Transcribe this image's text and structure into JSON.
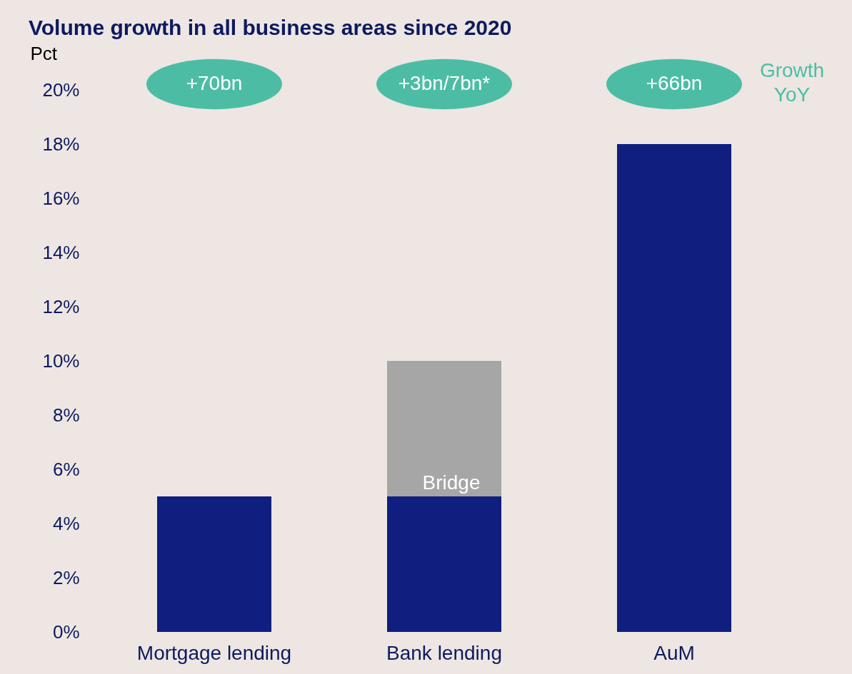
{
  "chart_data": {
    "type": "bar",
    "title": "Volume growth in all business areas since 2020",
    "ylabel": "Pct",
    "categories": [
      "Mortgage lending",
      "Bank lending",
      "AuM"
    ],
    "series": [
      {
        "color": "#101e80",
        "values": [
          5,
          5,
          18
        ]
      },
      {
        "name": "Bridge",
        "color": "#a6a6a6",
        "values": [
          null,
          5,
          null
        ]
      }
    ],
    "stacked": true,
    "ylim": [
      0,
      20
    ],
    "yticks": [
      {
        "value": 0,
        "label": "0%"
      },
      {
        "value": 2,
        "label": "2%"
      },
      {
        "value": 4,
        "label": "4%"
      },
      {
        "value": 6,
        "label": "6%"
      },
      {
        "value": 8,
        "label": "8%"
      },
      {
        "value": 10,
        "label": "10%"
      },
      {
        "value": 12,
        "label": "12%"
      },
      {
        "value": 14,
        "label": "14%"
      },
      {
        "value": 16,
        "label": "16%"
      },
      {
        "value": 18,
        "label": "18%"
      },
      {
        "value": 20,
        "label": "20%"
      }
    ],
    "annotations": [
      "+70bn",
      "+3bn/7bn*",
      "+66bn",
      "Growth YoY"
    ],
    "grid": false,
    "legend": false
  }
}
